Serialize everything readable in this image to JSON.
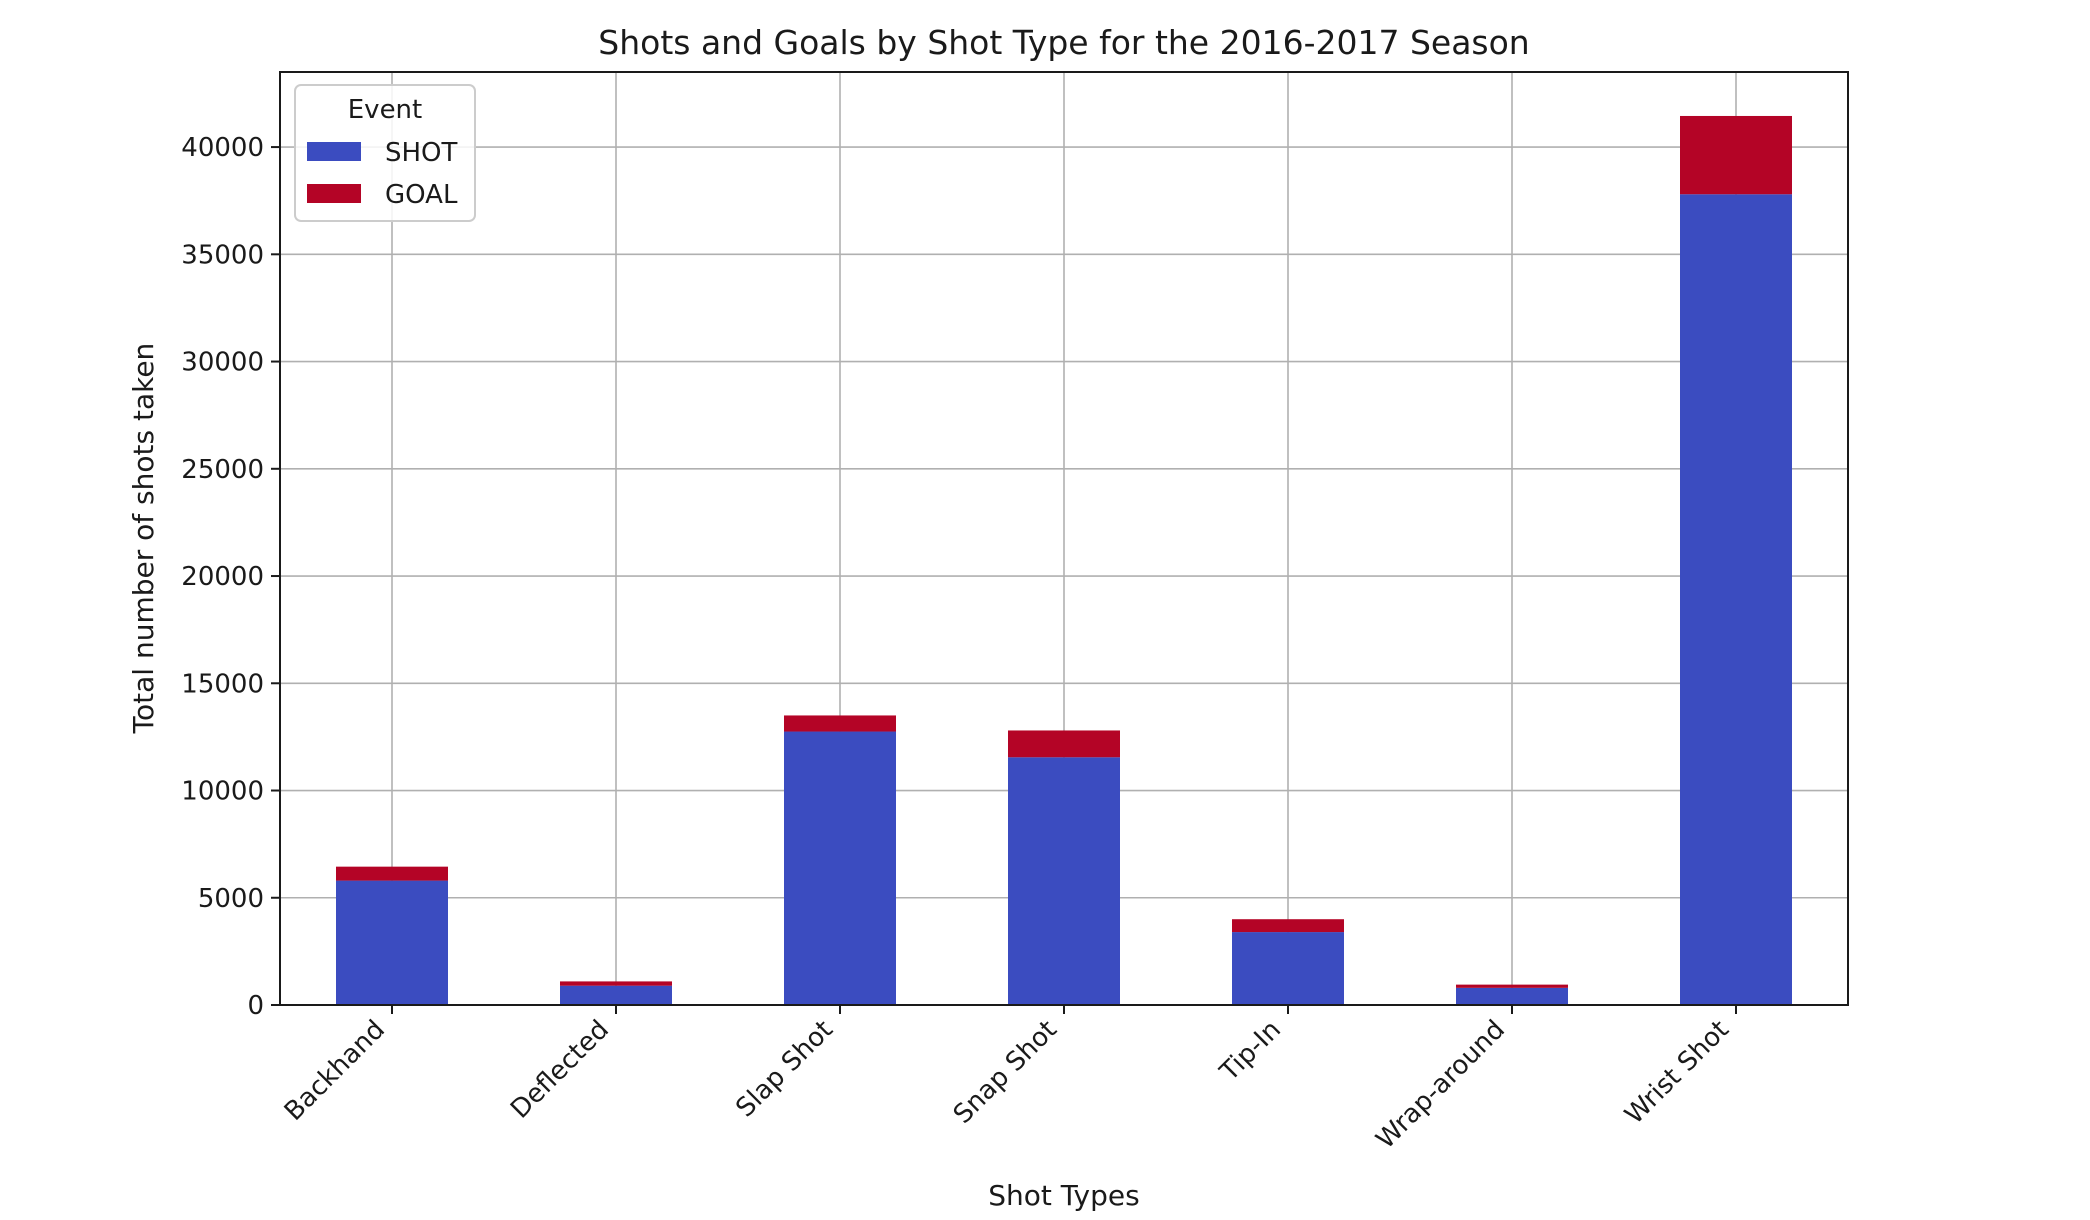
{
  "chart_data": {
    "type": "bar",
    "stacked": true,
    "title": "Shots and Goals by Shot Type for the 2016-2017 Season",
    "xlabel": "Shot Types",
    "ylabel": "Total number of shots taken",
    "categories": [
      "Backhand",
      "Deflected",
      "Slap Shot",
      "Snap Shot",
      "Tip-In",
      "Wrap-around",
      "Wrist Shot"
    ],
    "series": [
      {
        "name": "SHOT",
        "color": "#3b4cc0",
        "values": [
          5800,
          900,
          12750,
          11550,
          3400,
          800,
          37800
        ]
      },
      {
        "name": "GOAL",
        "color": "#b40426",
        "values": [
          650,
          200,
          750,
          1250,
          600,
          150,
          3650
        ]
      }
    ],
    "ylim": [
      0,
      43500
    ],
    "yticks": [
      0,
      5000,
      10000,
      15000,
      20000,
      25000,
      30000,
      35000,
      40000
    ],
    "grid": true,
    "legend": {
      "title": "Event",
      "position": "top-left"
    }
  }
}
